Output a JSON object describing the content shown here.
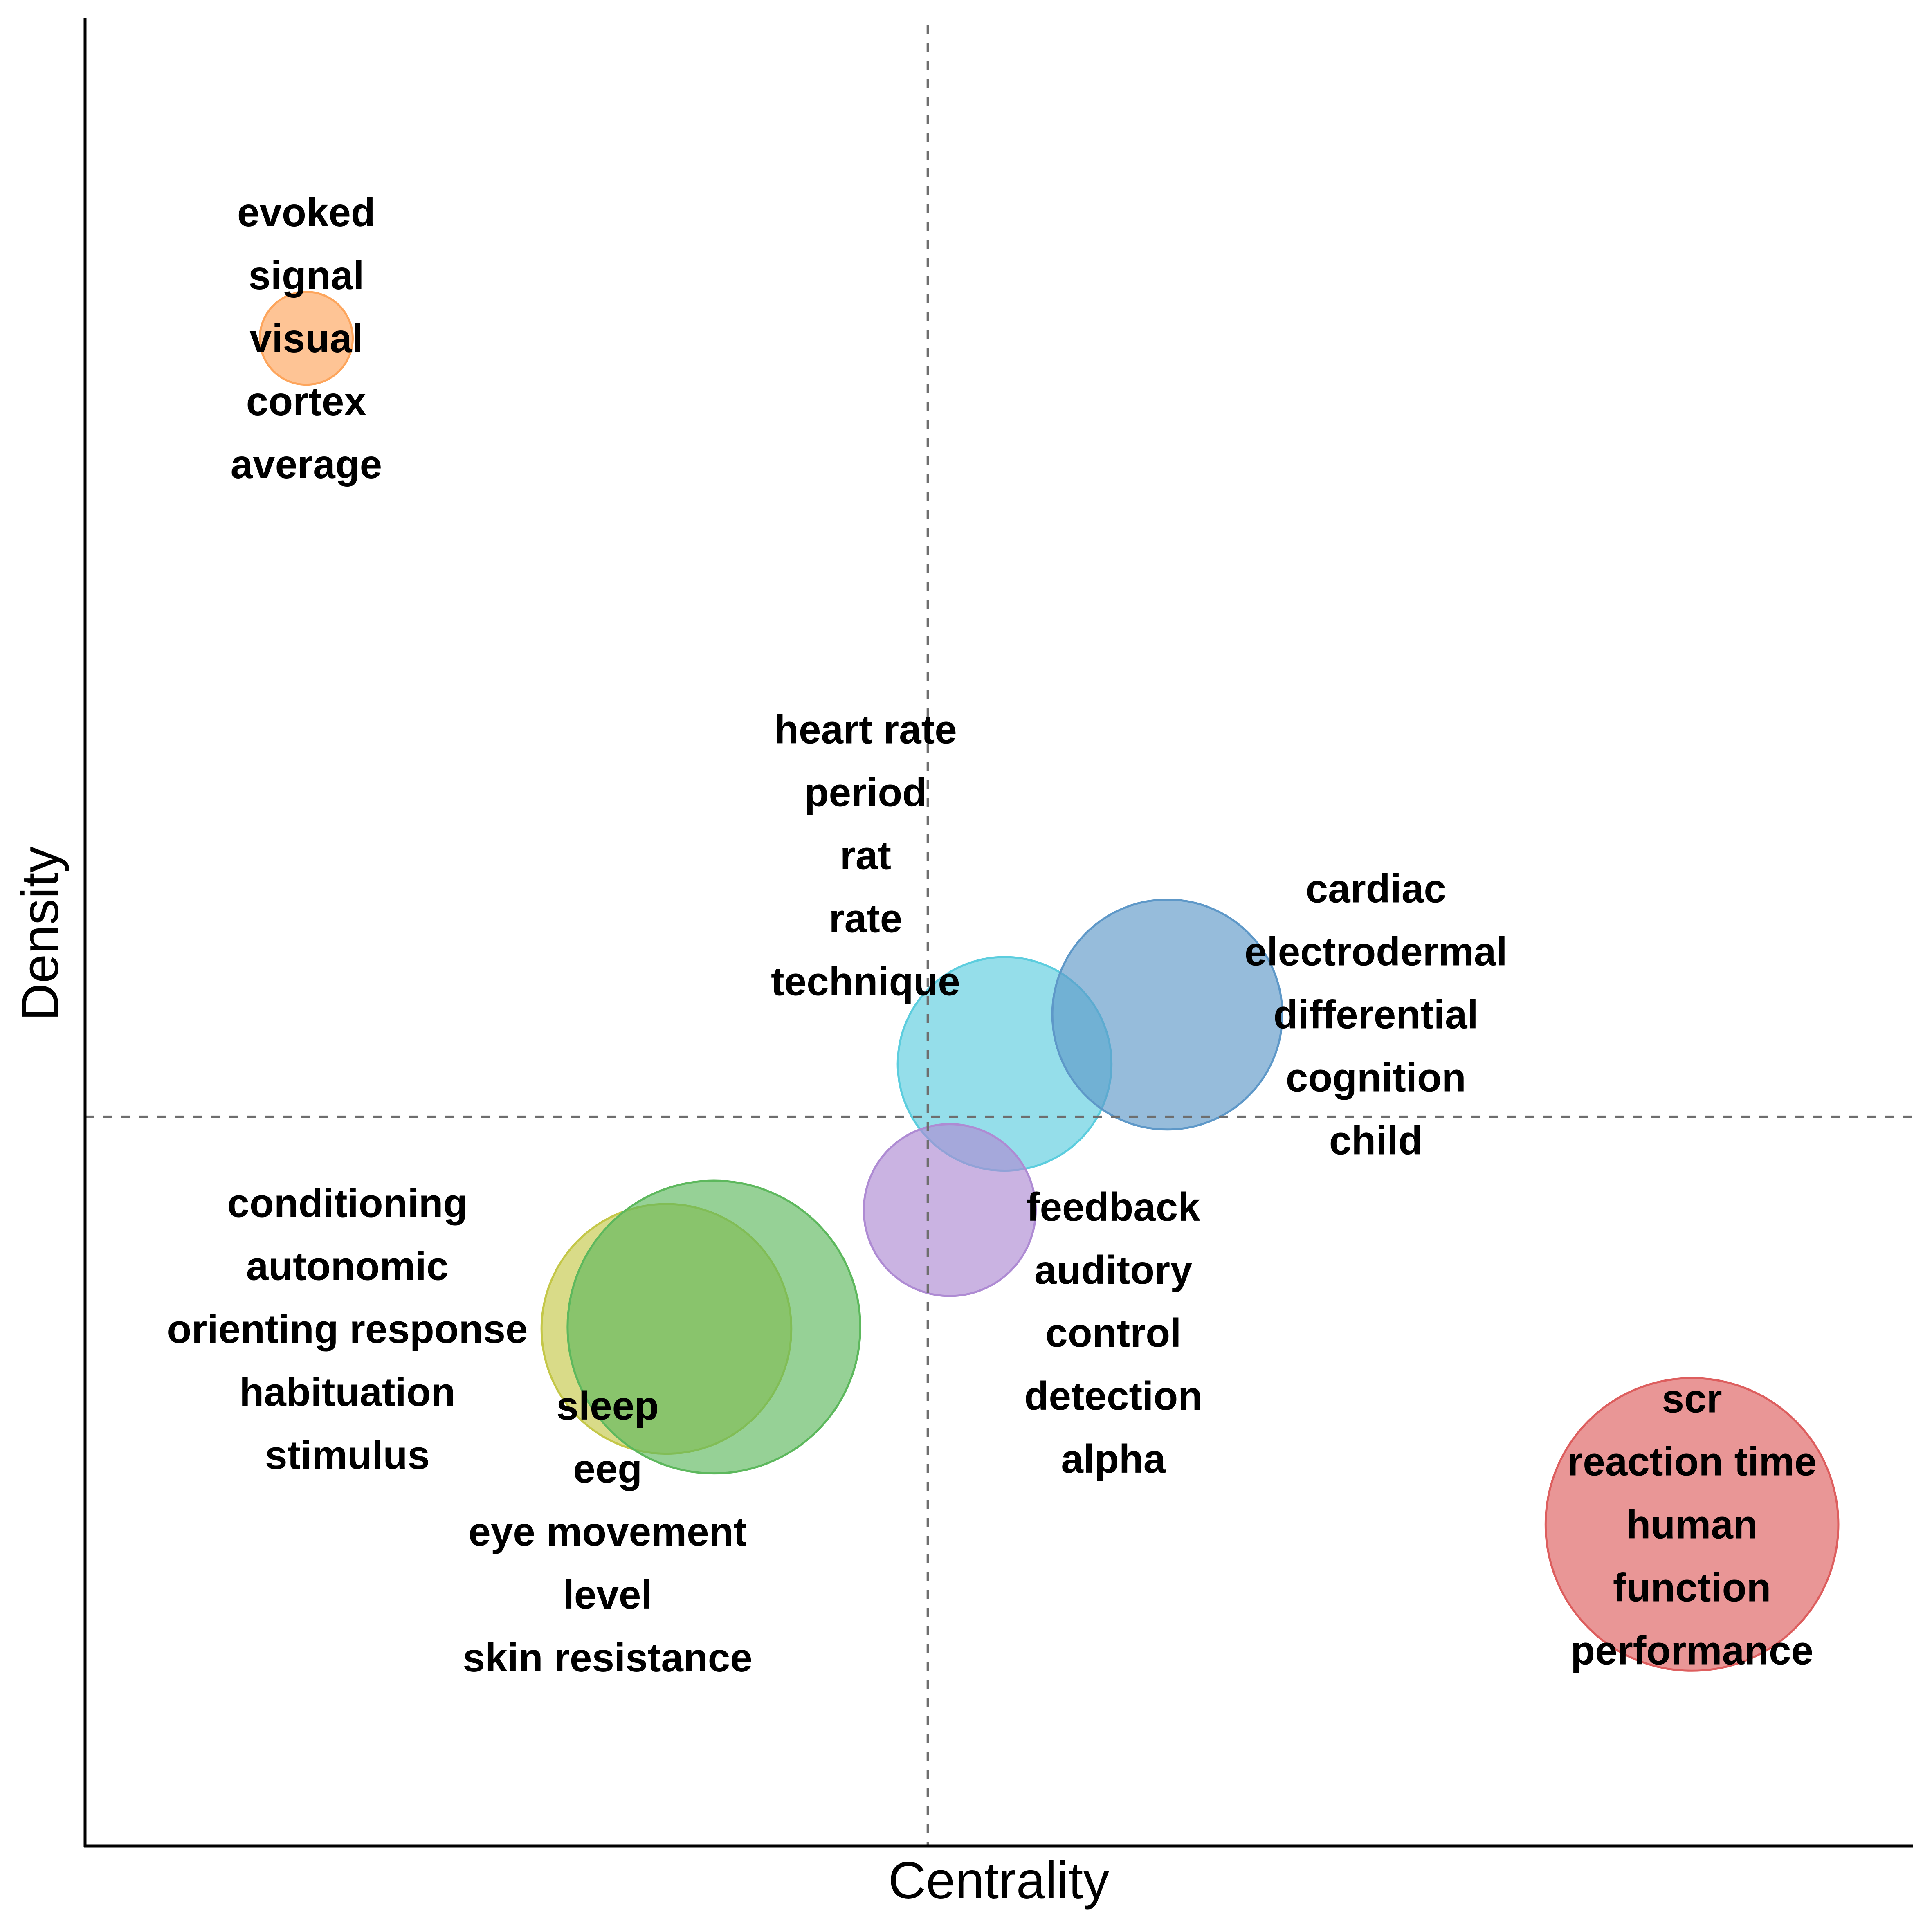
{
  "chart_data": {
    "type": "scatter",
    "title": "",
    "xlabel": "Centrality",
    "ylabel": "Density",
    "xlim": [
      0,
      1
    ],
    "ylim": [
      0,
      1
    ],
    "x_threshold": 0.461,
    "y_threshold": 0.399,
    "ticks_shown": false,
    "grid": false,
    "series": [
      {
        "x": 0.121,
        "y": 0.825,
        "size": 0.8,
        "color": "#FDA55C",
        "words": [
          "evoked",
          "signal",
          "visual",
          "cortex",
          "average"
        ]
      },
      {
        "x": 0.503,
        "y": 0.428,
        "size": 1.84,
        "color": "#5CCDDE",
        "words": [
          "heart rate",
          "period",
          "rat",
          "rate",
          "technique"
        ]
      },
      {
        "x": 0.592,
        "y": 0.455,
        "size": 1.98,
        "color": "#5E98C8",
        "words": [
          "cardiac",
          "electrodermal",
          "differential",
          "cognition",
          "child"
        ]
      },
      {
        "x": 0.473,
        "y": 0.348,
        "size": 1.48,
        "color": "#AE8BD3",
        "words": [
          "feedback",
          "auditory",
          "control",
          "detection",
          "alpha"
        ]
      },
      {
        "x": 0.318,
        "y": 0.283,
        "size": 2.15,
        "color": "#C4C748",
        "words": [
          "conditioning",
          "autonomic",
          "orienting response",
          "habituation",
          "stimulus"
        ]
      },
      {
        "x": 0.344,
        "y": 0.284,
        "size": 2.52,
        "color": "#5DB85D",
        "words": [
          "sleep",
          "eeg",
          "eye movement",
          "level",
          "skin resistance"
        ]
      },
      {
        "x": 0.879,
        "y": 0.176,
        "size": 2.52,
        "color": "#DD5E5E",
        "words": [
          "scr",
          "reaction time",
          "human",
          "function",
          "performance"
        ]
      }
    ]
  }
}
